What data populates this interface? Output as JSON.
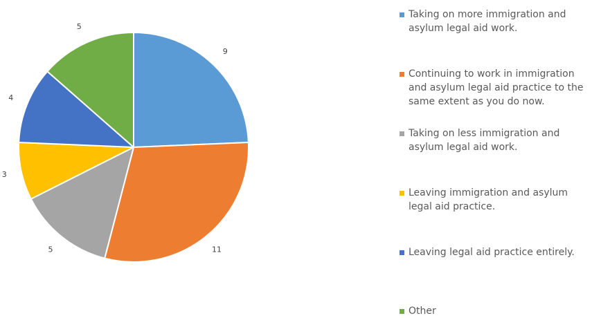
{
  "chart_data": {
    "type": "pie",
    "categories": [
      "Taking on more immigration and asylum legal aid work.",
      "Continuing to work in immigration and asylum legal aid practice to the same extent as you do now.",
      "Taking on less immigration and asylum legal aid work.",
      "Leaving immigration and asylum legal aid practice.",
      "Leaving legal aid practice entirely.",
      "Other"
    ],
    "values": [
      9,
      11,
      5,
      3,
      4,
      5
    ],
    "data_labels": [
      "9",
      "11",
      "5",
      "3",
      "4",
      "5"
    ],
    "colors": [
      "#5b9bd5",
      "#ed7d31",
      "#a5a5a5",
      "#ffc000",
      "#4472c4",
      "#70ad47"
    ],
    "title": "",
    "legend_position": "right",
    "start_angle": "12 o'clock",
    "direction": "clockwise"
  }
}
